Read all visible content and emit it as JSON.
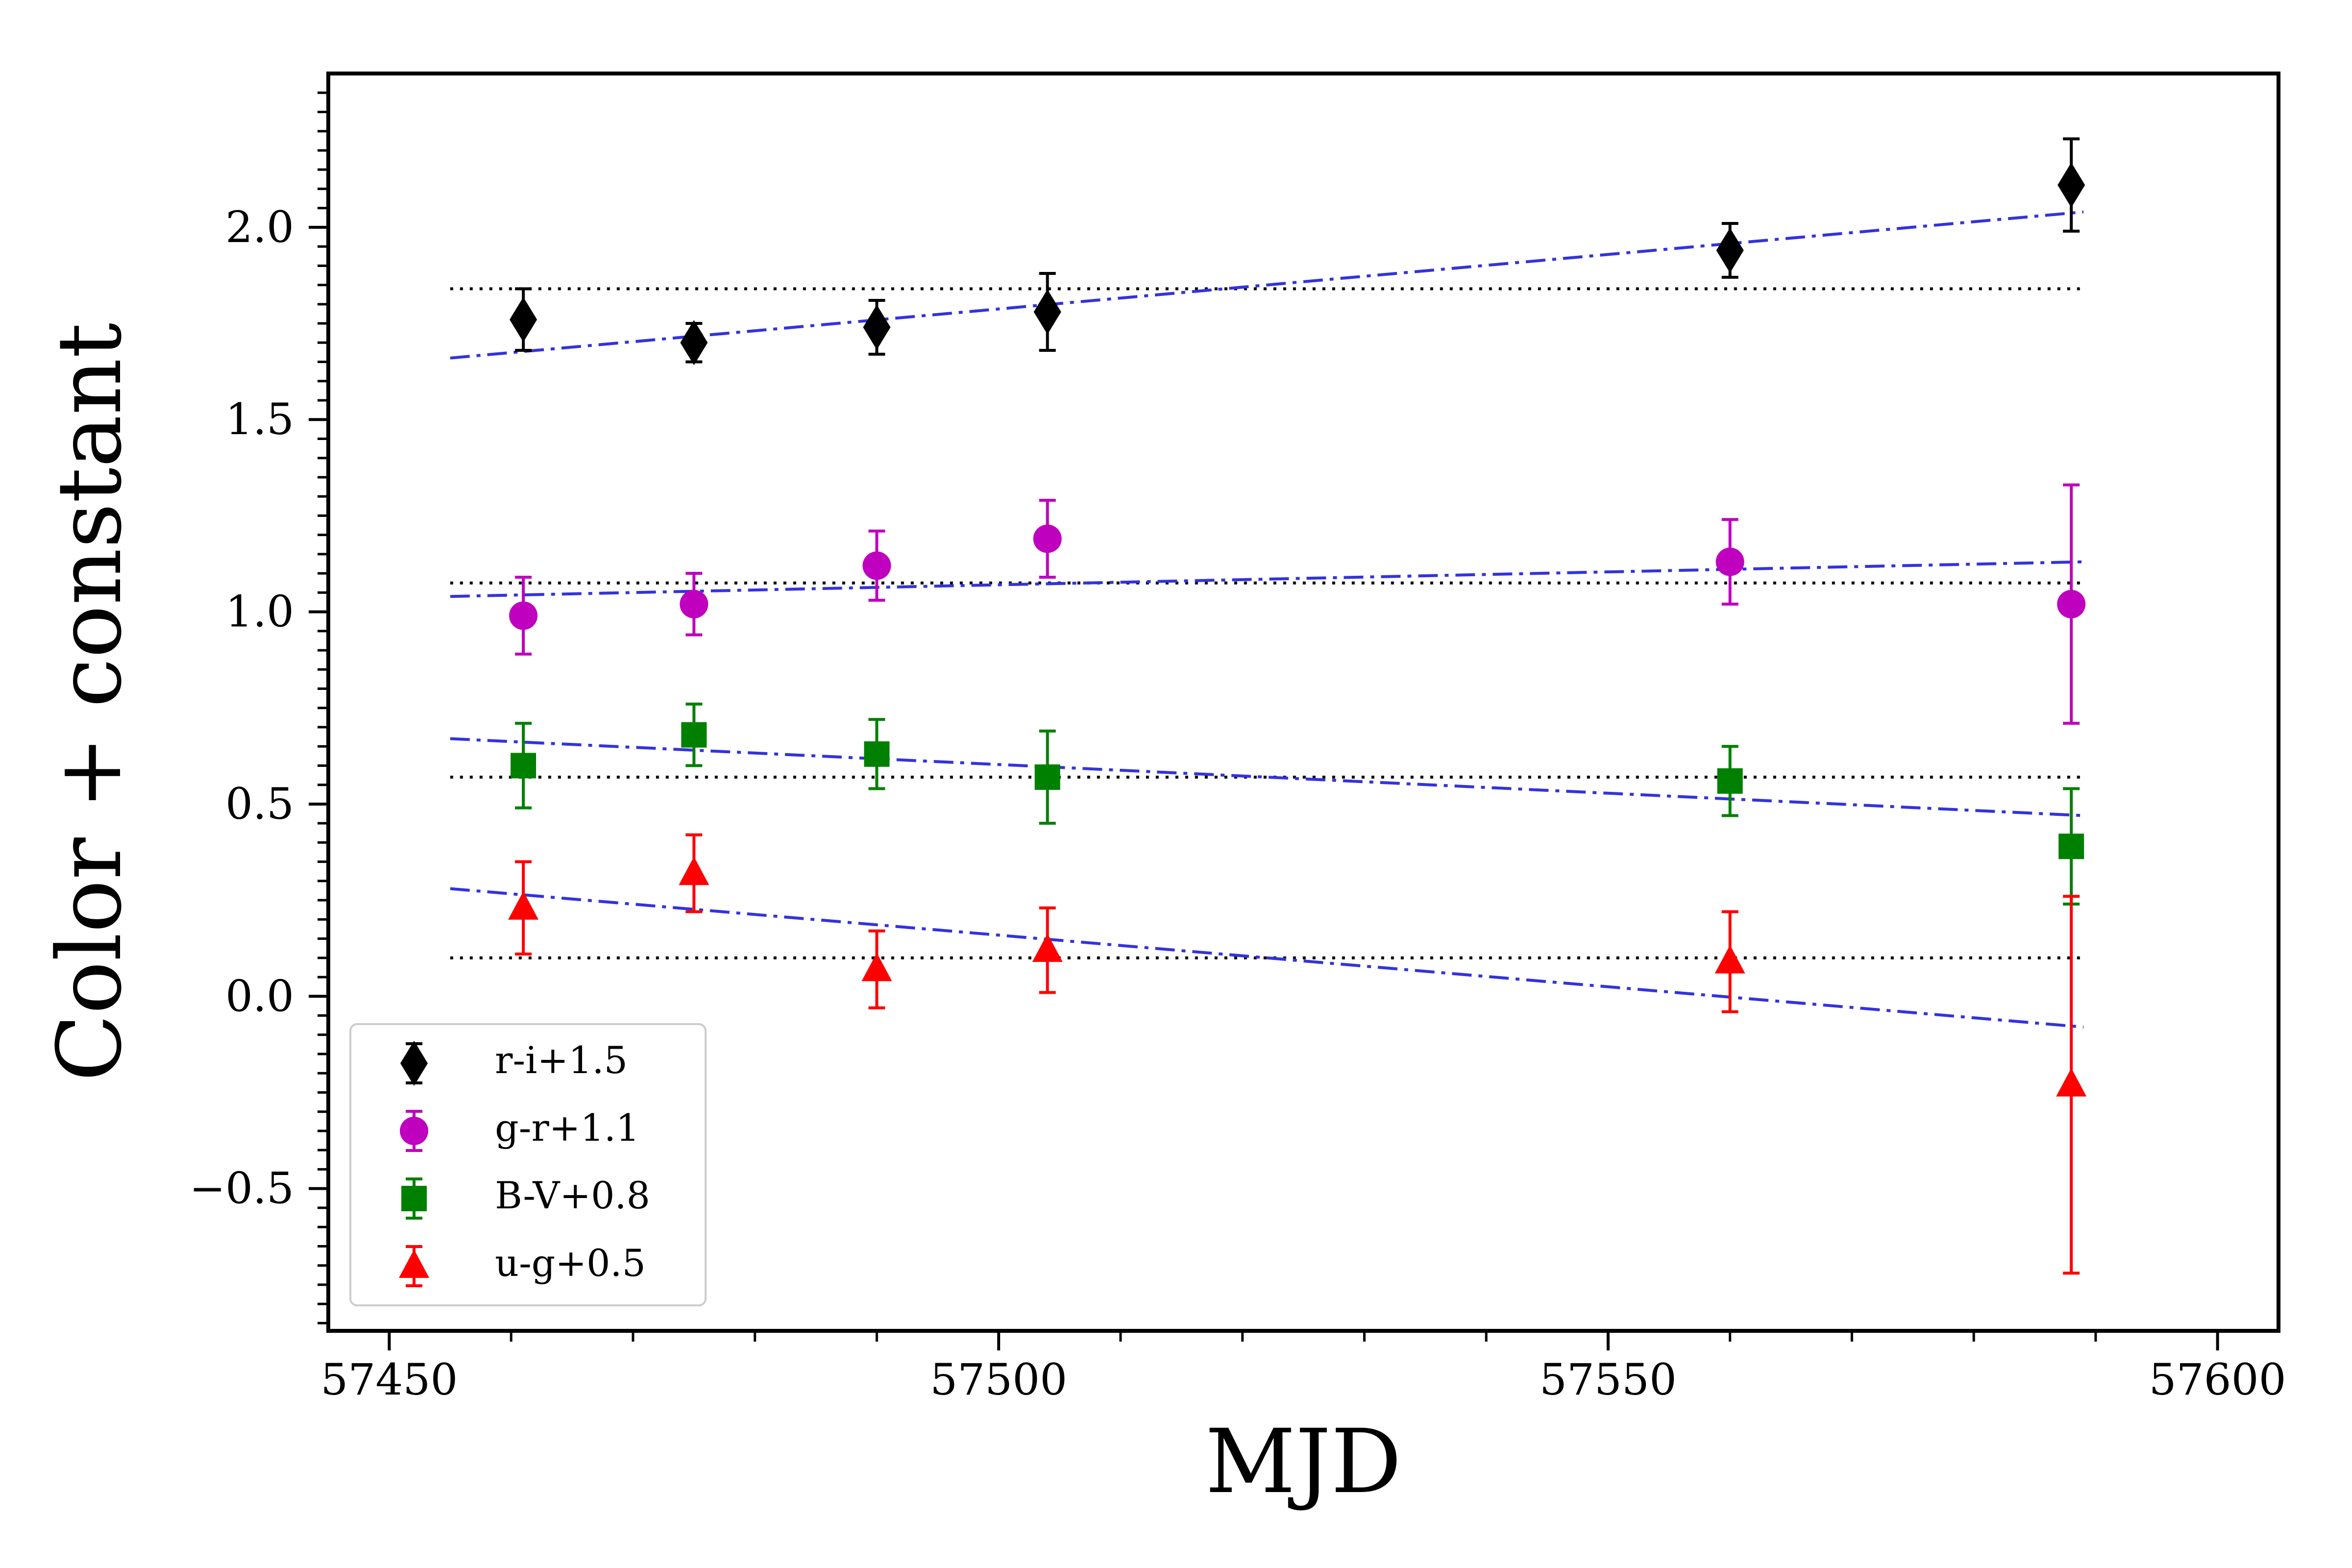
{
  "chart_data": {
    "type": "scatter",
    "title": "",
    "xlabel": "MJD",
    "ylabel": "Color + constant",
    "xlim": [
      57445,
      57605
    ],
    "ylim": [
      -0.87,
      2.4
    ],
    "xticks": [
      57450,
      57500,
      57550,
      57600
    ],
    "xtick_labels": [
      "57450",
      "57500",
      "57550",
      "57600"
    ],
    "yticks": [
      -0.5,
      0.0,
      0.5,
      1.0,
      1.5,
      2.0
    ],
    "ytick_labels": [
      "−0.5",
      "0.0",
      "0.5",
      "1.0",
      "1.5",
      "2.0"
    ],
    "legend_position": "lower-left",
    "series": [
      {
        "name": "r-i+1.5",
        "marker": "diamond",
        "color": "#000000",
        "x": [
          57461,
          57475,
          57490,
          57504,
          57560,
          57588
        ],
        "y": [
          1.76,
          1.7,
          1.74,
          1.78,
          1.94,
          2.11
        ],
        "err": [
          0.08,
          0.05,
          0.07,
          0.1,
          0.07,
          0.12
        ],
        "mean": 1.84,
        "fit": {
          "x": [
            57455,
            57589
          ],
          "y": [
            1.66,
            2.04
          ]
        }
      },
      {
        "name": "g-r+1.1",
        "marker": "circle",
        "color": "#bf00bf",
        "x": [
          57461,
          57475,
          57490,
          57504,
          57560,
          57588
        ],
        "y": [
          0.99,
          1.02,
          1.12,
          1.19,
          1.13,
          1.02
        ],
        "err": [
          0.1,
          0.08,
          0.09,
          0.1,
          0.11,
          0.31
        ],
        "mean": 1.075,
        "fit": {
          "x": [
            57455,
            57589
          ],
          "y": [
            1.04,
            1.13
          ]
        }
      },
      {
        "name": "B-V+0.8",
        "marker": "square",
        "color": "#008000",
        "x": [
          57461,
          57475,
          57490,
          57504,
          57560,
          57588
        ],
        "y": [
          0.6,
          0.68,
          0.63,
          0.57,
          0.56,
          0.39
        ],
        "err": [
          0.11,
          0.08,
          0.09,
          0.12,
          0.09,
          0.15
        ],
        "mean": 0.57,
        "fit": {
          "x": [
            57455,
            57589
          ],
          "y": [
            0.67,
            0.47
          ]
        }
      },
      {
        "name": "u-g+0.5",
        "marker": "triangle",
        "color": "#ff0000",
        "x": [
          57461,
          57475,
          57490,
          57504,
          57560,
          57588
        ],
        "y": [
          0.23,
          0.32,
          0.07,
          0.12,
          0.09,
          -0.23
        ],
        "err": [
          0.12,
          0.1,
          0.1,
          0.11,
          0.13,
          0.49
        ],
        "mean": 0.1,
        "fit": {
          "x": [
            57455,
            57589
          ],
          "y": [
            0.28,
            -0.08
          ]
        }
      }
    ],
    "mean_line_range": [
      57455,
      57589
    ],
    "mean_line_color": "#000000",
    "fit_line_color": "#3333dd"
  }
}
